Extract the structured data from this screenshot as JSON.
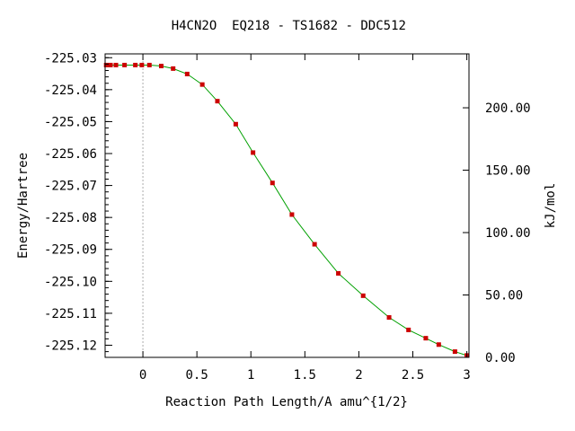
{
  "chart_data": {
    "type": "line",
    "title_left": "H4CN2O",
    "title_right": "EQ218 - TS1682 - DDC512",
    "xlabel": "Reaction Path Length/A amu^{1/2}",
    "ylabel": "Energy/Hartree",
    "y2label": "kJ/mol",
    "xlim": [
      -0.35,
      3.02
    ],
    "ylim": [
      -225.1238,
      -225.0288
    ],
    "y2lim": [
      0,
      243.2
    ],
    "x_ticks": [
      0,
      0.5,
      1,
      1.5,
      2,
      2.5,
      3
    ],
    "x_tick_labels": [
      "0",
      "0.5",
      "1",
      "1.5",
      "2",
      "2.5",
      "3"
    ],
    "y_ticks": [
      -225.03,
      -225.04,
      -225.05,
      -225.06,
      -225.07,
      -225.08,
      -225.09,
      -225.1,
      -225.11,
      -225.12
    ],
    "y_tick_labels": [
      "-225.03",
      "-225.04",
      "-225.05",
      "-225.06",
      "-225.07",
      "-225.08",
      "-225.09",
      "-225.10",
      "-225.11",
      "-225.12"
    ],
    "y2_ticks": [
      0,
      50,
      100,
      150,
      200
    ],
    "y2_tick_labels": [
      "0.00",
      "50.00",
      "100.00",
      "150.00",
      "200.00"
    ],
    "ts_marker_x": 0,
    "grid": false,
    "colors": {
      "line": "#00a000",
      "points": "#cc0000",
      "ts_line": "#aaaaaa",
      "axis": "#000000"
    },
    "series": [
      {
        "x": [
          -0.34,
          -0.3,
          -0.25,
          -0.17,
          -0.07,
          -0.01,
          0.06,
          0.17,
          0.28,
          0.41,
          0.55,
          0.69,
          0.86,
          1.02,
          1.2,
          1.38,
          1.59,
          1.81,
          2.04,
          2.28,
          2.46,
          2.62,
          2.74,
          2.89,
          3.0
        ],
        "y": [
          -225.0323,
          -225.0323,
          -225.0323,
          -225.0323,
          -225.0323,
          -225.0323,
          -225.0323,
          -225.0326,
          -225.0334,
          -225.0351,
          -225.0384,
          -225.0436,
          -225.0508,
          -225.0597,
          -225.0692,
          -225.0791,
          -225.0884,
          -225.0975,
          -225.1045,
          -225.1113,
          -225.1152,
          -225.1178,
          -225.1198,
          -225.122,
          -225.1232
        ]
      }
    ]
  }
}
